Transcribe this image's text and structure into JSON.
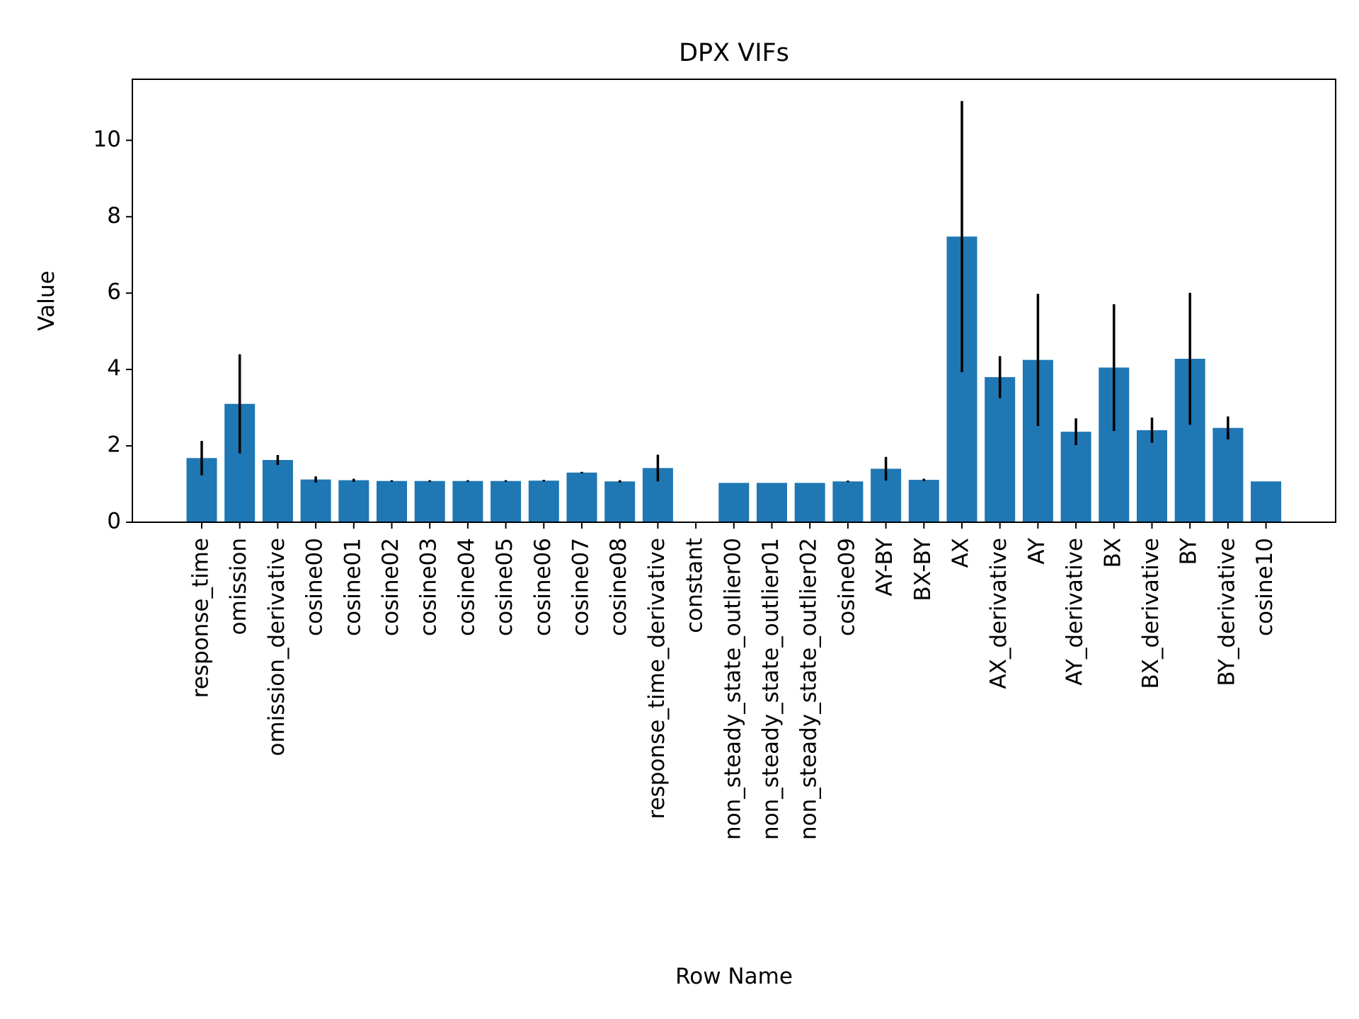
{
  "chart_data": {
    "type": "bar",
    "title": "DPX VIFs",
    "xlabel": "Row Name",
    "ylabel": "Value",
    "ylim": [
      0,
      11.6
    ],
    "yticks": [
      0,
      2,
      4,
      6,
      8,
      10
    ],
    "grid": false,
    "bar_color": "#1f77b4",
    "error_color": "#000000",
    "categories": [
      "response_time",
      "omission",
      "omission_derivative",
      "cosine00",
      "cosine01",
      "cosine02",
      "cosine03",
      "cosine04",
      "cosine05",
      "cosine06",
      "cosine07",
      "cosine08",
      "response_time_derivative",
      "constant",
      "non_steady_state_outlier00",
      "non_steady_state_outlier01",
      "non_steady_state_outlier02",
      "cosine09",
      "AY-BY",
      "BX-BY",
      "AX",
      "AX_derivative",
      "AY",
      "AY_derivative",
      "BX",
      "BX_derivative",
      "BY",
      "BY_derivative",
      "cosine10"
    ],
    "values": [
      1.68,
      3.1,
      1.63,
      1.12,
      1.1,
      1.08,
      1.08,
      1.08,
      1.08,
      1.09,
      1.3,
      1.07,
      1.42,
      null,
      1.03,
      1.03,
      1.03,
      1.07,
      1.4,
      1.11,
      7.48,
      3.8,
      4.25,
      2.37,
      4.05,
      2.41,
      4.28,
      2.47,
      1.07
    ],
    "errors": [
      0.45,
      1.3,
      0.13,
      0.08,
      0.04,
      0.02,
      0.02,
      0.02,
      0.02,
      0.02,
      0.02,
      0.03,
      0.35,
      null,
      0,
      0,
      0,
      0.02,
      0.31,
      0.03,
      3.55,
      0.55,
      1.73,
      0.35,
      1.66,
      0.33,
      1.73,
      0.3,
      0
    ]
  }
}
